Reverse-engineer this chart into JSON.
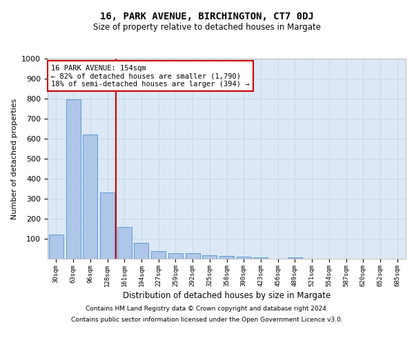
{
  "title": "16, PARK AVENUE, BIRCHINGTON, CT7 0DJ",
  "subtitle": "Size of property relative to detached houses in Margate",
  "xlabel": "Distribution of detached houses by size in Margate",
  "ylabel": "Number of detached properties",
  "categories": [
    "30sqm",
    "63sqm",
    "96sqm",
    "128sqm",
    "161sqm",
    "194sqm",
    "227sqm",
    "259sqm",
    "292sqm",
    "325sqm",
    "358sqm",
    "390sqm",
    "423sqm",
    "456sqm",
    "489sqm",
    "521sqm",
    "554sqm",
    "587sqm",
    "620sqm",
    "652sqm",
    "685sqm"
  ],
  "values": [
    120,
    795,
    620,
    330,
    160,
    78,
    37,
    27,
    26,
    18,
    14,
    10,
    7,
    0,
    8,
    0,
    0,
    0,
    0,
    0,
    0
  ],
  "bar_color": "#aec6e8",
  "bar_edge_color": "#5b9bd5",
  "vline_color": "#cc0000",
  "annotation_text": "16 PARK AVENUE: 154sqm\n← 82% of detached houses are smaller (1,790)\n18% of semi-detached houses are larger (394) →",
  "annotation_box_color": "#ffffff",
  "annotation_box_edge_color": "#cc0000",
  "grid_color": "#c8d8e8",
  "background_color": "#dce8f5",
  "ylim": [
    0,
    1000
  ],
  "yticks": [
    0,
    100,
    200,
    300,
    400,
    500,
    600,
    700,
    800,
    900,
    1000
  ],
  "footer_line1": "Contains HM Land Registry data © Crown copyright and database right 2024.",
  "footer_line2": "Contains public sector information licensed under the Open Government Licence v3.0."
}
